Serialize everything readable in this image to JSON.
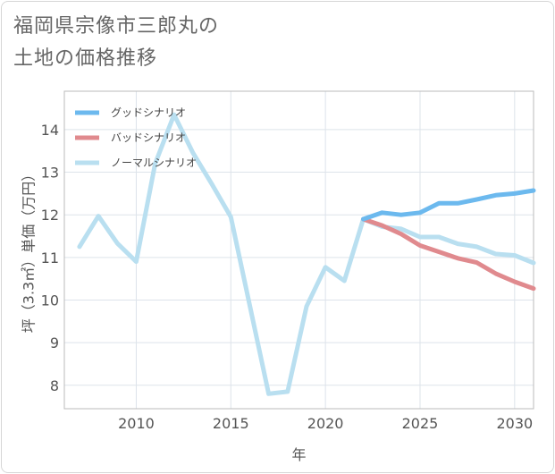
{
  "title_lines": [
    "福岡県宗像市三郎丸の",
    "土地の価格推移"
  ],
  "chart_data": {
    "type": "line",
    "xlabel": "年",
    "ylabel": "坪（3.3㎡）単価（万円）",
    "xlim": [
      2006.2,
      2031
    ],
    "ylim": [
      7.45,
      14.9
    ],
    "xticks": [
      2010,
      2015,
      2020,
      2025,
      2030
    ],
    "yticks": [
      8,
      9,
      10,
      11,
      12,
      13,
      14
    ],
    "grid": true,
    "legend_position": "top-left",
    "series": [
      {
        "name": "グッドシナリオ",
        "color": "#6cb9ee",
        "x": [
          2022,
          2023,
          2024,
          2025,
          2026,
          2027,
          2028,
          2029,
          2030,
          2031
        ],
        "y": [
          11.9,
          12.05,
          12.0,
          12.05,
          12.27,
          12.27,
          12.36,
          12.46,
          12.5,
          12.57
        ]
      },
      {
        "name": "バッドシナリオ",
        "color": "#e08a8e",
        "x": [
          2022,
          2023,
          2024,
          2025,
          2026,
          2027,
          2028,
          2029,
          2030,
          2031
        ],
        "y": [
          11.9,
          11.75,
          11.55,
          11.28,
          11.13,
          10.98,
          10.88,
          10.62,
          10.43,
          10.27
        ]
      },
      {
        "name": "ノーマルシナリオ",
        "color": "#b9dff0",
        "x": [
          2007,
          2008,
          2009,
          2010,
          2011,
          2012,
          2013,
          2014,
          2015,
          2016,
          2017,
          2018,
          2019,
          2020,
          2021,
          2022,
          2023,
          2024,
          2025,
          2026,
          2027,
          2028,
          2029,
          2030,
          2031
        ],
        "y": [
          11.25,
          11.97,
          11.33,
          10.9,
          13.2,
          14.35,
          13.45,
          12.72,
          11.95,
          9.87,
          7.8,
          7.85,
          9.85,
          10.77,
          10.45,
          11.9,
          11.72,
          11.67,
          11.48,
          11.48,
          11.32,
          11.25,
          11.08,
          11.05,
          10.87
        ]
      }
    ]
  }
}
